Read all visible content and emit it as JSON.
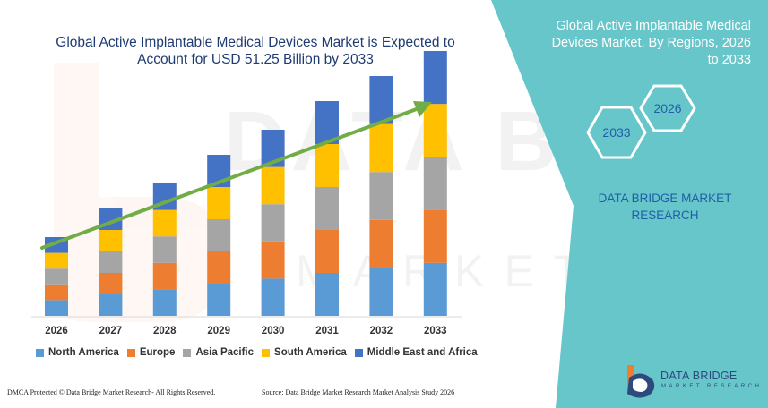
{
  "title_line1": "Global Active Implantable Medical Devices Market is Expected to",
  "title_line2": "Account for USD 51.25 Billion by 2033",
  "panel": {
    "title_line1": "Global Active Implantable Medical",
    "title_line2": "Devices Market, By Regions, 2026",
    "title_line3": "to 2033",
    "hex_labels": [
      "2026",
      "2033"
    ],
    "company_line1": "DATA BRIDGE MARKET",
    "company_line2": "RESEARCH",
    "accent": "#67c6ca"
  },
  "footer": {
    "left": "DMCA Protected © Data Bridge Market Research-  All Rights Reserved.",
    "right": "Source: Data Bridge Market Research  Market Analysis Study 2026"
  },
  "logo": {
    "name": "DATA BRIDGE",
    "tagline": "MARKET RESEARCH",
    "icon": "data-bridge-logo-icon"
  },
  "chart_data": {
    "type": "bar",
    "stacked": true,
    "categories": [
      "2026",
      "2027",
      "2028",
      "2029",
      "2030",
      "2031",
      "2032",
      "2033"
    ],
    "series": [
      {
        "name": "North America",
        "color": "#5b9bd5",
        "values": [
          2.2,
          3.0,
          3.7,
          4.5,
          5.2,
          6.0,
          6.7,
          7.4
        ]
      },
      {
        "name": "Europe",
        "color": "#ed7d31",
        "values": [
          2.2,
          3.0,
          3.7,
          4.5,
          5.2,
          6.0,
          6.7,
          7.4
        ]
      },
      {
        "name": "Asia Pacific",
        "color": "#a5a5a5",
        "values": [
          2.2,
          3.0,
          3.7,
          4.5,
          5.2,
          6.0,
          6.7,
          7.4
        ]
      },
      {
        "name": "South America",
        "color": "#ffc000",
        "values": [
          2.2,
          3.0,
          3.7,
          4.5,
          5.2,
          6.0,
          6.7,
          7.4
        ]
      },
      {
        "name": "Middle East and Africa",
        "color": "#4472c4",
        "values": [
          2.2,
          3.0,
          3.7,
          4.5,
          5.2,
          6.0,
          6.7,
          7.4
        ]
      }
    ],
    "ylim": [
      0,
      40
    ],
    "trend_arrow_color": "#70ad47",
    "legend_position": "bottom",
    "grid": false
  }
}
